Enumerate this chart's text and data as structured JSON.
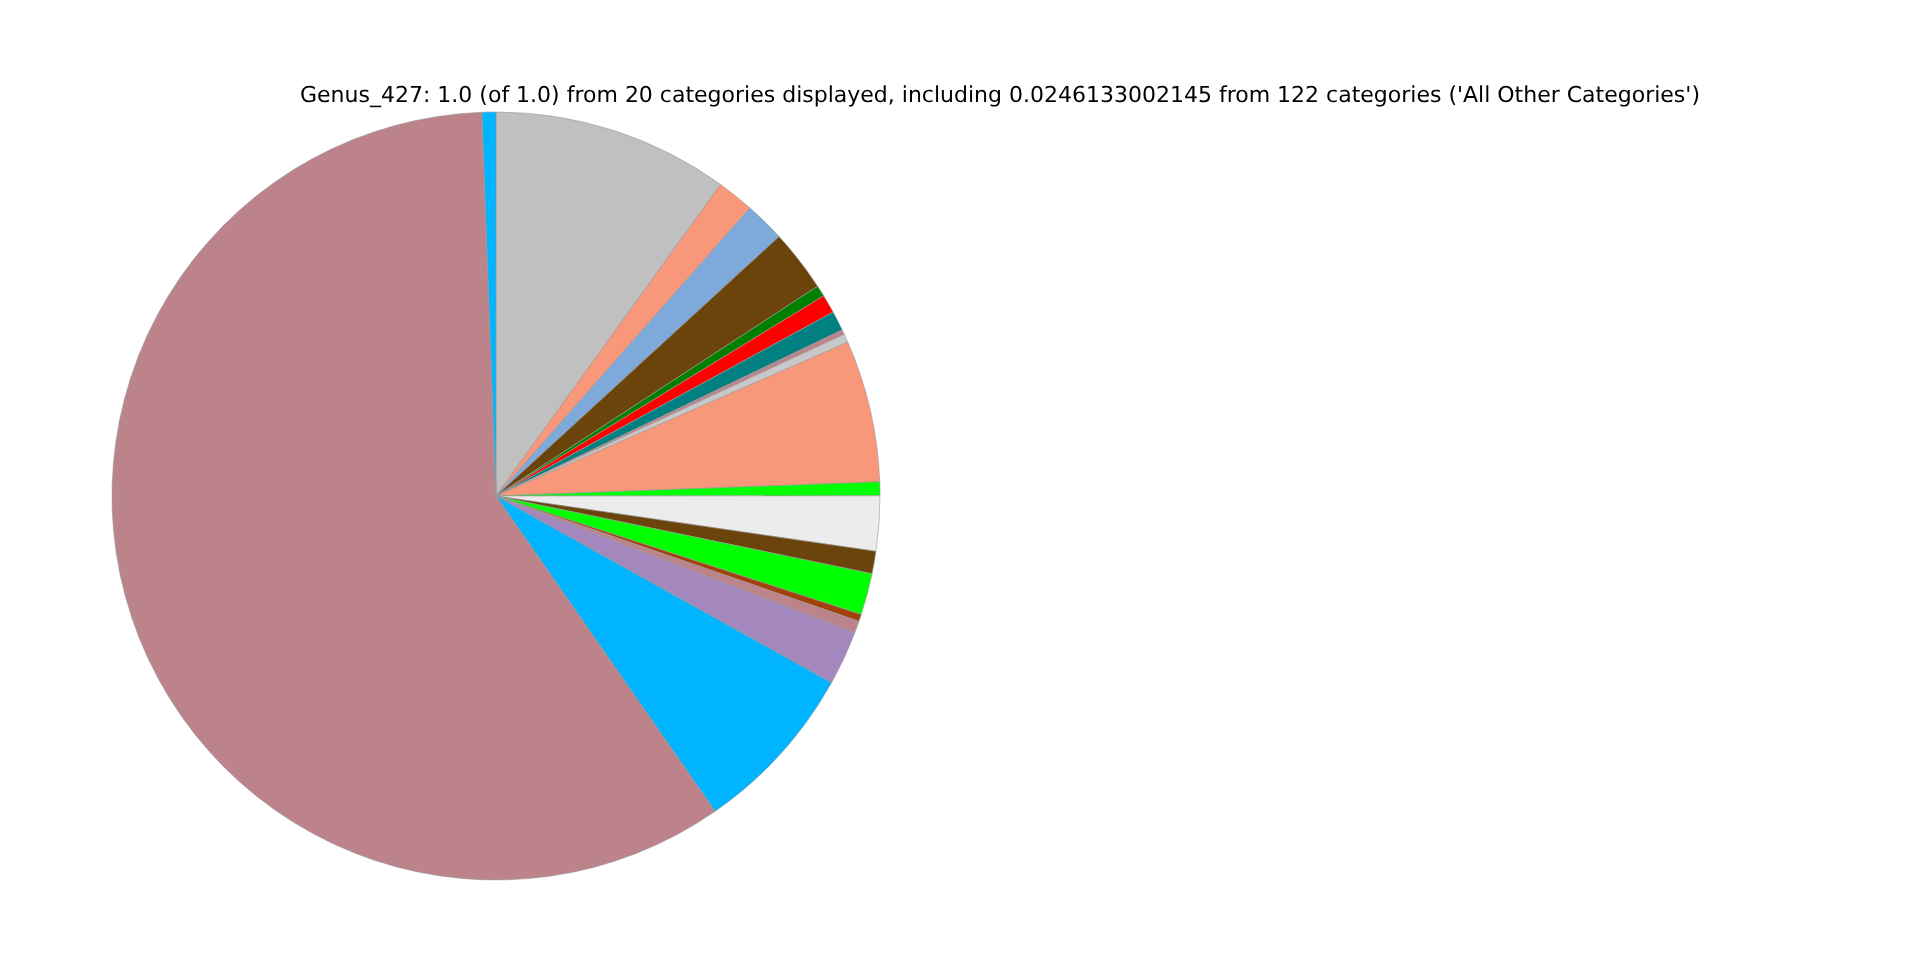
{
  "chart_data": {
    "type": "pie",
    "title": "Genus_427: 1.0 (of 1.0) from 20 categories displayed, including 0.0246133002145 from 122 categories ('All Other Categories')",
    "categories": [
      null,
      null,
      null,
      null,
      null,
      null,
      null,
      null,
      null,
      null,
      null,
      null,
      null,
      null,
      null,
      null,
      null,
      null,
      null,
      null
    ],
    "values": [
      9.94,
      1.56,
      1.69,
      2.61,
      0.47,
      0.78,
      0.83,
      0.2,
      0.36,
      5.97,
      0.58,
      2.31,
      0.94,
      1.75,
      0.3,
      0.5,
      2.29,
      7.25,
      59.08,
      0.58
    ],
    "colors": [
      "#c0c0c0",
      "#f89779",
      "#7eaadb",
      "#6b440c",
      "#008000",
      "#ff0000",
      "#008080",
      "#bc838b",
      "#c8c8c8",
      "#f89779",
      "#00ff00",
      "#ececec",
      "#6b440c",
      "#00ff00",
      "#a0420a",
      "#bc838b",
      "#a487bd",
      "#00b4ff",
      "#bc838b",
      "#00b4ff"
    ]
  }
}
